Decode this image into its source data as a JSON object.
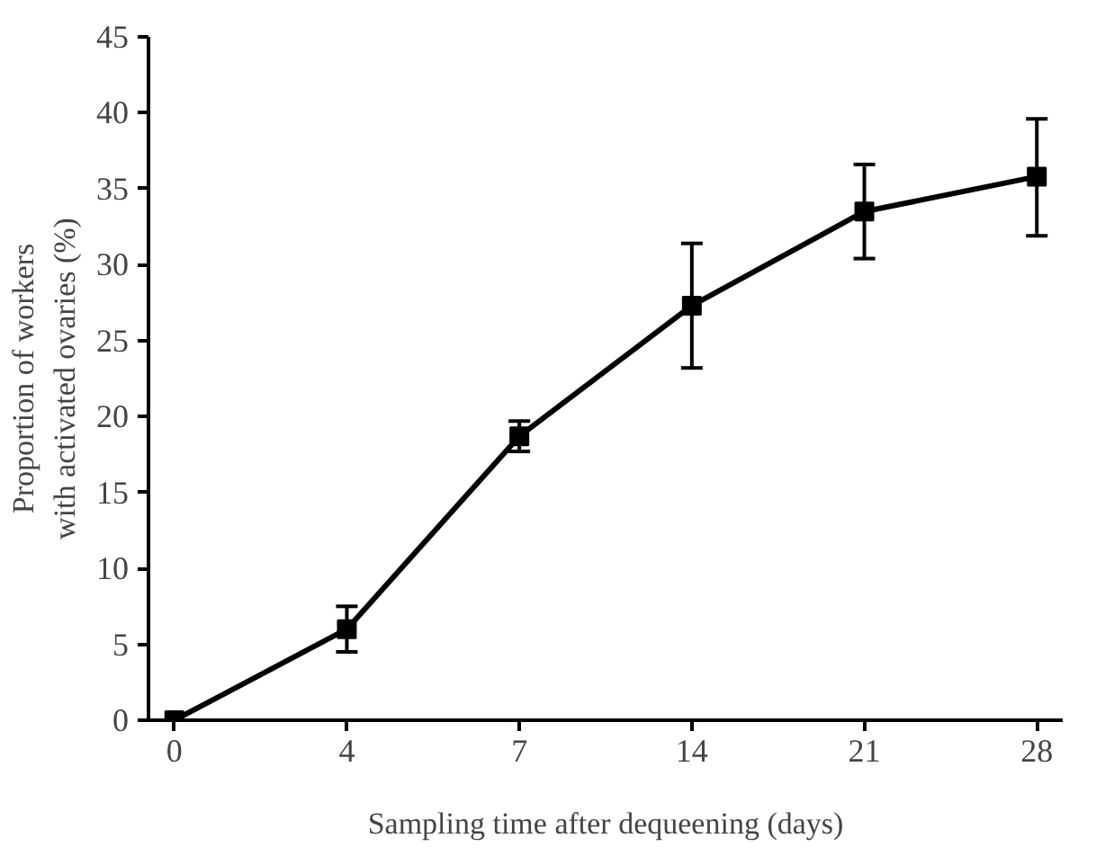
{
  "chart_data": {
    "type": "line",
    "xlabel": "Sampling time after dequeening (days)",
    "ylabel": "Proportion of workers\nwith activated ovaries (%)",
    "categories": [
      "0",
      "4",
      "7",
      "14",
      "21",
      "28"
    ],
    "series": [
      {
        "color": "#000000",
        "values": [
          0,
          6,
          18.7,
          27.3,
          33.5,
          35.8
        ],
        "errors": [
          null,
          [
            4.5,
            7.5
          ],
          [
            17.7,
            19.7
          ],
          [
            23.2,
            31.4
          ],
          [
            30.4,
            36.6
          ],
          [
            31.9,
            39.6
          ]
        ]
      }
    ],
    "ylim": [
      0,
      45
    ],
    "yticks": [
      0,
      5,
      10,
      15,
      20,
      25,
      30,
      35,
      40,
      45
    ],
    "grid": false,
    "marker": "square",
    "line_style": "solid"
  }
}
